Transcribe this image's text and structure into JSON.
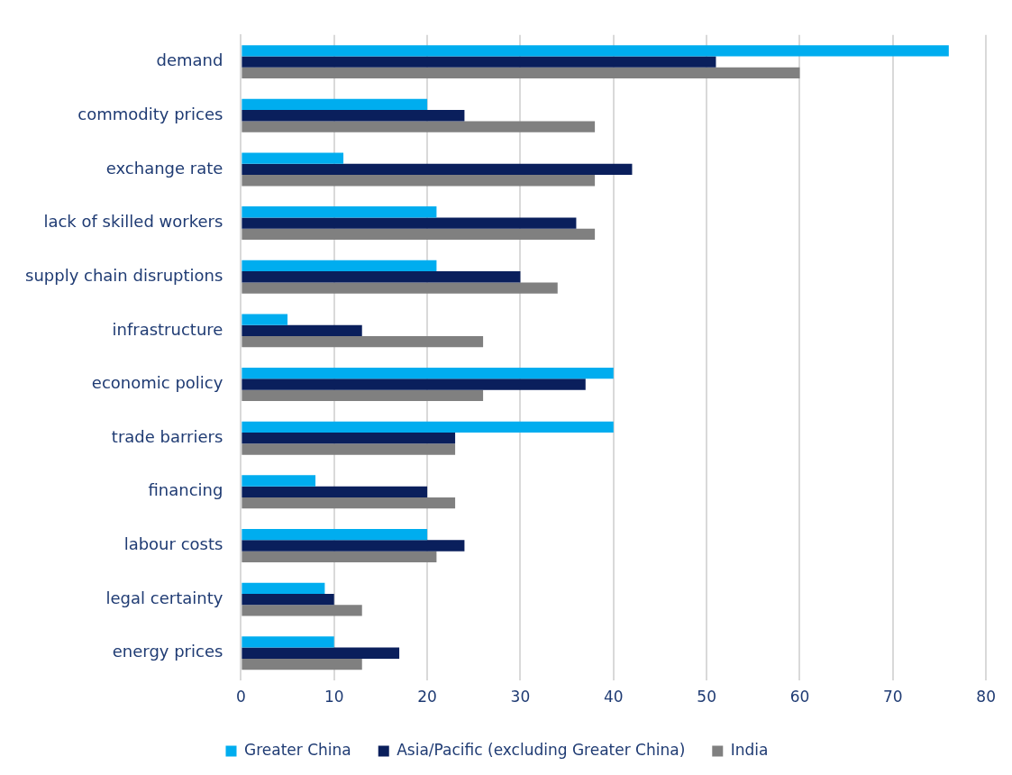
{
  "chart_data": {
    "type": "bar",
    "orientation": "horizontal",
    "categories": [
      "demand",
      "commodity prices",
      "exchange rate",
      "lack of skilled workers",
      "supply chain disruptions",
      "infrastructure",
      "economic policy",
      "trade barriers",
      "financing",
      "labour costs",
      "legal certainty",
      "energy prices"
    ],
    "series": [
      {
        "name": "Greater China",
        "color": "#00adef",
        "values": [
          76,
          20,
          11,
          21,
          21,
          5,
          40,
          40,
          8,
          20,
          9,
          10
        ]
      },
      {
        "name": "Asia/Pacific (excluding Greater China)",
        "color": "#0a1f5c",
        "values": [
          51,
          24,
          42,
          36,
          30,
          13,
          37,
          23,
          20,
          24,
          10,
          17
        ]
      },
      {
        "name": "India",
        "color": "#808080",
        "values": [
          60,
          38,
          38,
          38,
          34,
          26,
          26,
          23,
          23,
          21,
          13,
          13
        ]
      }
    ],
    "xlim": [
      0,
      80
    ],
    "xticks": [
      0,
      10,
      20,
      30,
      40,
      50,
      60,
      70,
      80
    ],
    "grid": "x",
    "legend": "bottom"
  }
}
